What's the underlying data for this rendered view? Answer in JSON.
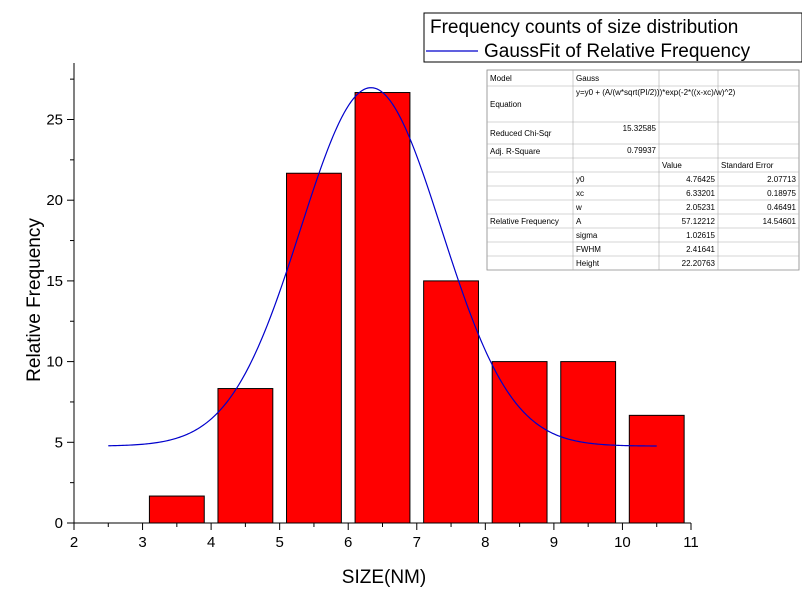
{
  "chart_data": {
    "type": "bar",
    "xlabel": "SIZE(NM)",
    "ylabel": "Relative Frequency",
    "xlim": [
      2,
      11
    ],
    "ylim": [
      0,
      28.5
    ],
    "x_ticks": [
      "2",
      "3",
      "4",
      "5",
      "6",
      "7",
      "8",
      "9",
      "10",
      "11"
    ],
    "y_ticks": [
      "0",
      "5",
      "10",
      "15",
      "20",
      "25"
    ],
    "bar_width": 0.8,
    "bar_color": "#ff0000",
    "fit_color": "#0000cc",
    "series": [
      {
        "name": "Frequency counts of size distribution",
        "x": [
          3.5,
          4.5,
          5.5,
          6.5,
          7.5,
          8.5,
          9.5,
          10.5
        ],
        "values": [
          1.67,
          8.33,
          21.67,
          26.67,
          15.0,
          10.0,
          10.0,
          6.67
        ]
      },
      {
        "name": "GaussFit of Relative Frequency",
        "type": "line",
        "x_range": [
          2.5,
          10.5
        ],
        "model": {
          "y0": 4.76425,
          "xc": 6.33201,
          "w": 2.05231,
          "A": 57.12212
        }
      }
    ],
    "legend": {
      "position": "top-right",
      "bars_label": "Frequency counts of size distribution",
      "fit_label": "GaussFit of Relative Frequency"
    },
    "fit_table": {
      "rows": [
        [
          "Model",
          "Gauss",
          "",
          ""
        ],
        [
          "Equation",
          "y=y0 + (A/(w*sqrt(PI/2)))*exp(-2*((x-xc)/w)^2)",
          "",
          ""
        ],
        [
          "Reduced Chi-Sqr",
          "15.32585",
          "",
          ""
        ],
        [
          "Adj. R-Square",
          "0.79937",
          "",
          ""
        ],
        [
          "",
          "",
          "Value",
          "Standard Error"
        ],
        [
          "",
          "y0",
          "4.76425",
          "2.07713"
        ],
        [
          "",
          "xc",
          "6.33201",
          "0.18975"
        ],
        [
          "",
          "w",
          "2.05231",
          "0.46491"
        ],
        [
          "Relative Frequency",
          "A",
          "57.12212",
          "14.54601"
        ],
        [
          "",
          "sigma",
          "1.02615",
          ""
        ],
        [
          "",
          "FWHM",
          "2.41641",
          ""
        ],
        [
          "",
          "Height",
          "22.20763",
          ""
        ]
      ]
    }
  }
}
